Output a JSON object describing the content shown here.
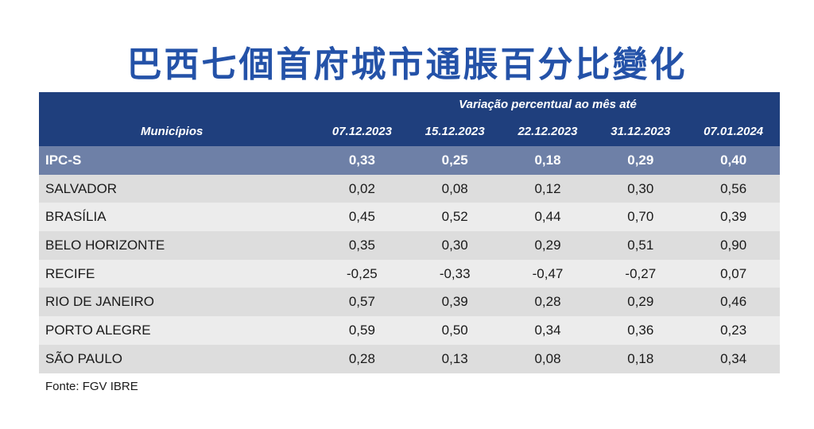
{
  "title": "巴西七個首府城市通脹百分比變化",
  "source": "Fonte: FGV IBRE",
  "colors": {
    "title": "#2452a8",
    "header_bg": "#1f3f7d",
    "highlight_row": "#6e80a7",
    "row_dark": "#dddddd",
    "row_light": "#ececec"
  },
  "chart_data": {
    "type": "table",
    "title": "巴西七個首府城市通脹百分比變化",
    "super_header": "Variação percentual ao mês até",
    "row_header": "Municípios",
    "columns": [
      "07.12.2023",
      "15.12.2023",
      "22.12.2023",
      "31.12.2023",
      "07.01.2024"
    ],
    "rows": [
      {
        "name": "IPC-S",
        "values": [
          "0,33",
          "0,25",
          "0,18",
          "0,29",
          "0,40"
        ]
      },
      {
        "name": "SALVADOR",
        "values": [
          "0,02",
          "0,08",
          "0,12",
          "0,30",
          "0,56"
        ]
      },
      {
        "name": "BRASÍLIA",
        "values": [
          "0,45",
          "0,52",
          "0,44",
          "0,70",
          "0,39"
        ]
      },
      {
        "name": "BELO HORIZONTE",
        "values": [
          "0,35",
          "0,30",
          "0,29",
          "0,51",
          "0,90"
        ]
      },
      {
        "name": "RECIFE",
        "values": [
          "-0,25",
          "-0,33",
          "-0,47",
          "-0,27",
          "0,07"
        ]
      },
      {
        "name": "RIO DE JANEIRO",
        "values": [
          "0,57",
          "0,39",
          "0,28",
          "0,29",
          "0,46"
        ]
      },
      {
        "name": "PORTO ALEGRE",
        "values": [
          "0,59",
          "0,50",
          "0,34",
          "0,36",
          "0,23"
        ]
      },
      {
        "name": "SÃO PAULO",
        "values": [
          "0,28",
          "0,13",
          "0,08",
          "0,18",
          "0,34"
        ]
      }
    ],
    "source": "Fonte: FGV IBRE"
  }
}
